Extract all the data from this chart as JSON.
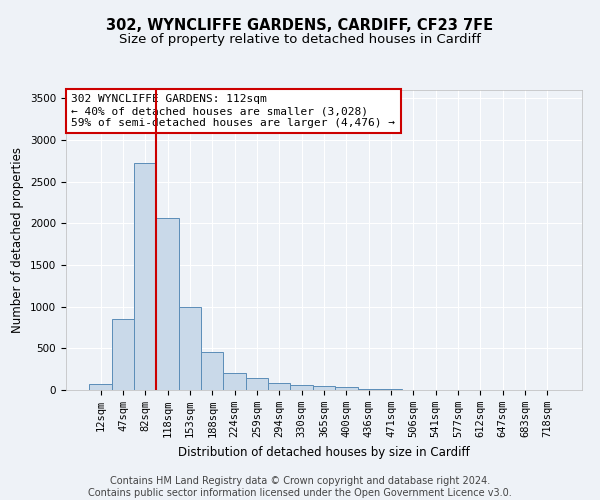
{
  "title": "302, WYNCLIFFE GARDENS, CARDIFF, CF23 7FE",
  "subtitle": "Size of property relative to detached houses in Cardiff",
  "xlabel": "Distribution of detached houses by size in Cardiff",
  "ylabel": "Number of detached properties",
  "footer_line1": "Contains HM Land Registry data © Crown copyright and database right 2024.",
  "footer_line2": "Contains public sector information licensed under the Open Government Licence v3.0.",
  "annotation_line1": "302 WYNCLIFFE GARDENS: 112sqm",
  "annotation_line2": "← 40% of detached houses are smaller (3,028)",
  "annotation_line3": "59% of semi-detached houses are larger (4,476) →",
  "bar_categories": [
    "12sqm",
    "47sqm",
    "82sqm",
    "118sqm",
    "153sqm",
    "188sqm",
    "224sqm",
    "259sqm",
    "294sqm",
    "330sqm",
    "365sqm",
    "400sqm",
    "436sqm",
    "471sqm",
    "506sqm",
    "541sqm",
    "577sqm",
    "612sqm",
    "647sqm",
    "683sqm",
    "718sqm"
  ],
  "bar_values": [
    75,
    850,
    2730,
    2070,
    1000,
    460,
    210,
    140,
    80,
    60,
    45,
    35,
    15,
    8,
    4,
    2,
    1,
    1,
    0,
    0,
    0
  ],
  "bar_color": "#c9d9e9",
  "bar_edge_color": "#5b8db8",
  "vline_color": "#cc0000",
  "vline_position": 2.5,
  "ylim": [
    0,
    3600
  ],
  "yticks": [
    0,
    500,
    1000,
    1500,
    2000,
    2500,
    3000,
    3500
  ],
  "bg_color": "#eef2f7",
  "plot_bg_color": "#eef2f7",
  "grid_color": "#ffffff",
  "annotation_box_color": "#ffffff",
  "annotation_box_edge": "#cc0000",
  "title_fontsize": 10.5,
  "subtitle_fontsize": 9.5,
  "axis_label_fontsize": 8.5,
  "tick_fontsize": 7.5,
  "annotation_fontsize": 8,
  "footer_fontsize": 7
}
